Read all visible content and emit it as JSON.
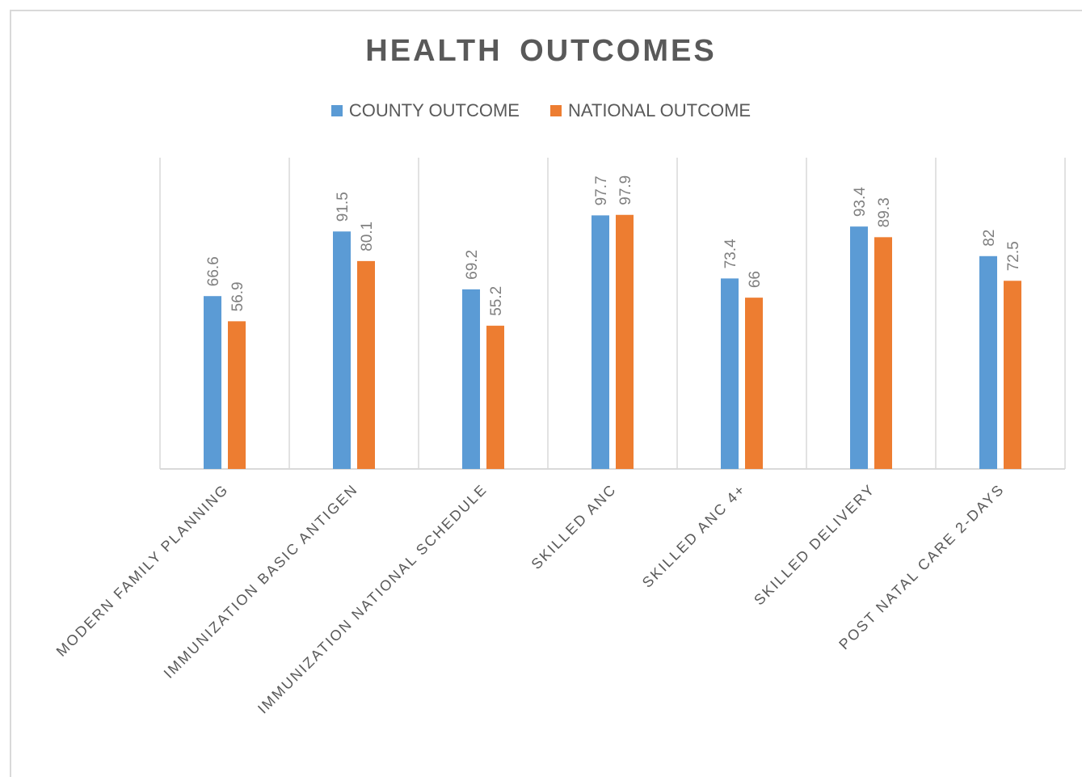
{
  "chart_data": {
    "type": "bar",
    "title": "HEALTH  OUTCOMES",
    "categories": [
      "MODERN FAMILY PLANNING",
      "IMMUNIZATION BASIC ANTIGEN",
      "IMMUNIZATION NATIONAL SCHEDULE",
      "SKILLED ANC",
      "SKILLED ANC 4+",
      "SKILLED DELIVERY",
      "POST NATAL CARE 2-DAYS"
    ],
    "series": [
      {
        "name": "COUNTY OUTCOME",
        "color": "#5b9bd5",
        "values": [
          66.6,
          91.5,
          69.2,
          97.7,
          73.4,
          93.4,
          82
        ]
      },
      {
        "name": "NATIONAL OUTCOME",
        "color": "#ed7d31",
        "values": [
          56.9,
          80.1,
          55.2,
          97.9,
          66,
          89.3,
          72.5
        ]
      }
    ],
    "ylim": [
      0,
      100
    ],
    "grid": "vertical category separators",
    "legend_position": "top",
    "data_labels": true,
    "axis_line_color": "#d9d9d9",
    "label_color": "#595959"
  }
}
